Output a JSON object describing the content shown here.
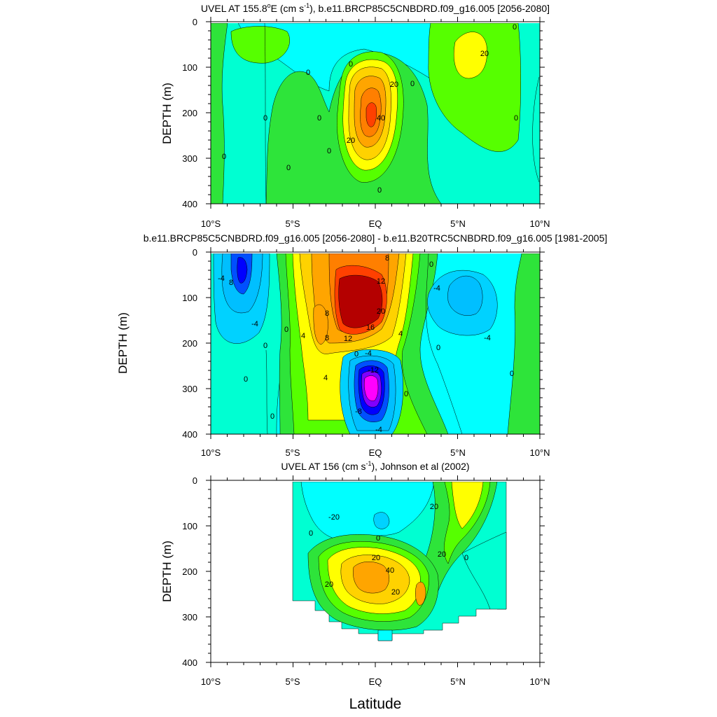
{
  "colors": {
    "cyan": "#00ffff",
    "aqua": "#00ffd2",
    "green": "#00ff00",
    "ltgreen": "#56ff00",
    "green2": "#2ee43a",
    "yellow": "#ffff00",
    "yorange": "#ffd200",
    "orange": "#ffa500",
    "dorange": "#ff7f00",
    "red": "#ff4000",
    "darkred": "#b40000",
    "skyblue": "#00d2ff",
    "ltblue": "#00bfff",
    "blue": "#0050ff",
    "dblue": "#0000ff",
    "purple": "#8000ff",
    "magenta": "#ff00ff",
    "white": "#ffffff"
  },
  "common": {
    "x_tick_labels": [
      "10°S",
      "5°S",
      "EQ",
      "5°N",
      "10°N"
    ],
    "y_tick_labels": [
      "0",
      "100",
      "200",
      "300",
      "400"
    ],
    "xlabel": "Latitude"
  },
  "chart_data": [
    {
      "type": "heatmap",
      "title_pre": "UVEL AT 155.8",
      "title_sup1": "o",
      "title_mid": "E (cm s",
      "title_sup2": "-1",
      "title_post": "), b.e11.BRCP85C5CNBDRD.f09_g16.005 [2056-2080]",
      "ylabel": "DEPTH (m)",
      "xlim": [
        -10,
        10
      ],
      "ylim": [
        400,
        0
      ],
      "x": [
        -10,
        -5,
        0,
        5,
        10
      ],
      "y": [
        0,
        100,
        200,
        300,
        400
      ],
      "contour_labels": [
        "0",
        "0",
        "0",
        "0",
        "0",
        "0",
        "0",
        "0",
        "0",
        "0",
        "20",
        "20",
        "20",
        "40",
        "0"
      ],
      "features": [
        {
          "name": "eastward undercurrent core",
          "lat": -0.2,
          "depth": 170,
          "max_value": 60
        },
        {
          "name": "northern eastward jet",
          "lat": 5.5,
          "depth": 70,
          "max_value": 25
        }
      ]
    },
    {
      "type": "heatmap",
      "title": "b.e11.BRCP85C5CNBDRD.f09_g16.005 [2056-2080] - b.e11.B20TRC5CNBDRD.f09_g16.005 [1981-2005]",
      "ylabel": "DEPTH (m)",
      "xlim": [
        -10,
        10
      ],
      "ylim": [
        400,
        0
      ],
      "x": [
        -10,
        -5,
        0,
        5,
        10
      ],
      "y": [
        0,
        100,
        200,
        300,
        400
      ],
      "contour_labels": [
        "8",
        "-4",
        "-4",
        "0",
        "0",
        "0",
        "4",
        "4",
        "8",
        "8",
        "12",
        "12",
        "16",
        "20",
        "8",
        "0",
        "-4",
        "-12",
        "-8",
        "-4",
        "0",
        "0",
        "-4",
        "4",
        "0",
        "0",
        "0",
        "-4"
      ],
      "features": [
        {
          "name": "positive anomaly core",
          "lat": -0.5,
          "depth": 120,
          "max_value": 24
        },
        {
          "name": "negative anomaly core",
          "lat": -0.2,
          "depth": 290,
          "min_value": -24
        },
        {
          "name": "negative anomaly west",
          "lat": -8,
          "depth": 50,
          "min_value": -12
        },
        {
          "name": "negative anomaly east",
          "lat": 6,
          "depth": 100,
          "min_value": -6
        }
      ]
    },
    {
      "type": "heatmap",
      "title_pre": "UVEL AT 156 (cm s",
      "title_sup": "-1",
      "title_post": "), Johnson et al (2002)",
      "ylabel": "DEPTH (m)",
      "xlim": [
        -10,
        10
      ],
      "ylim": [
        400,
        0
      ],
      "x": [
        -10,
        -5,
        0,
        5,
        10
      ],
      "y": [
        0,
        100,
        200,
        300,
        400
      ],
      "contour_labels": [
        "-20",
        "0",
        "0",
        "20",
        "40",
        "20",
        "20",
        "20",
        "0",
        "20"
      ],
      "features": [
        {
          "name": "eastward undercurrent core",
          "lat": -0.5,
          "depth": 200,
          "max_value": 50
        }
      ]
    }
  ]
}
